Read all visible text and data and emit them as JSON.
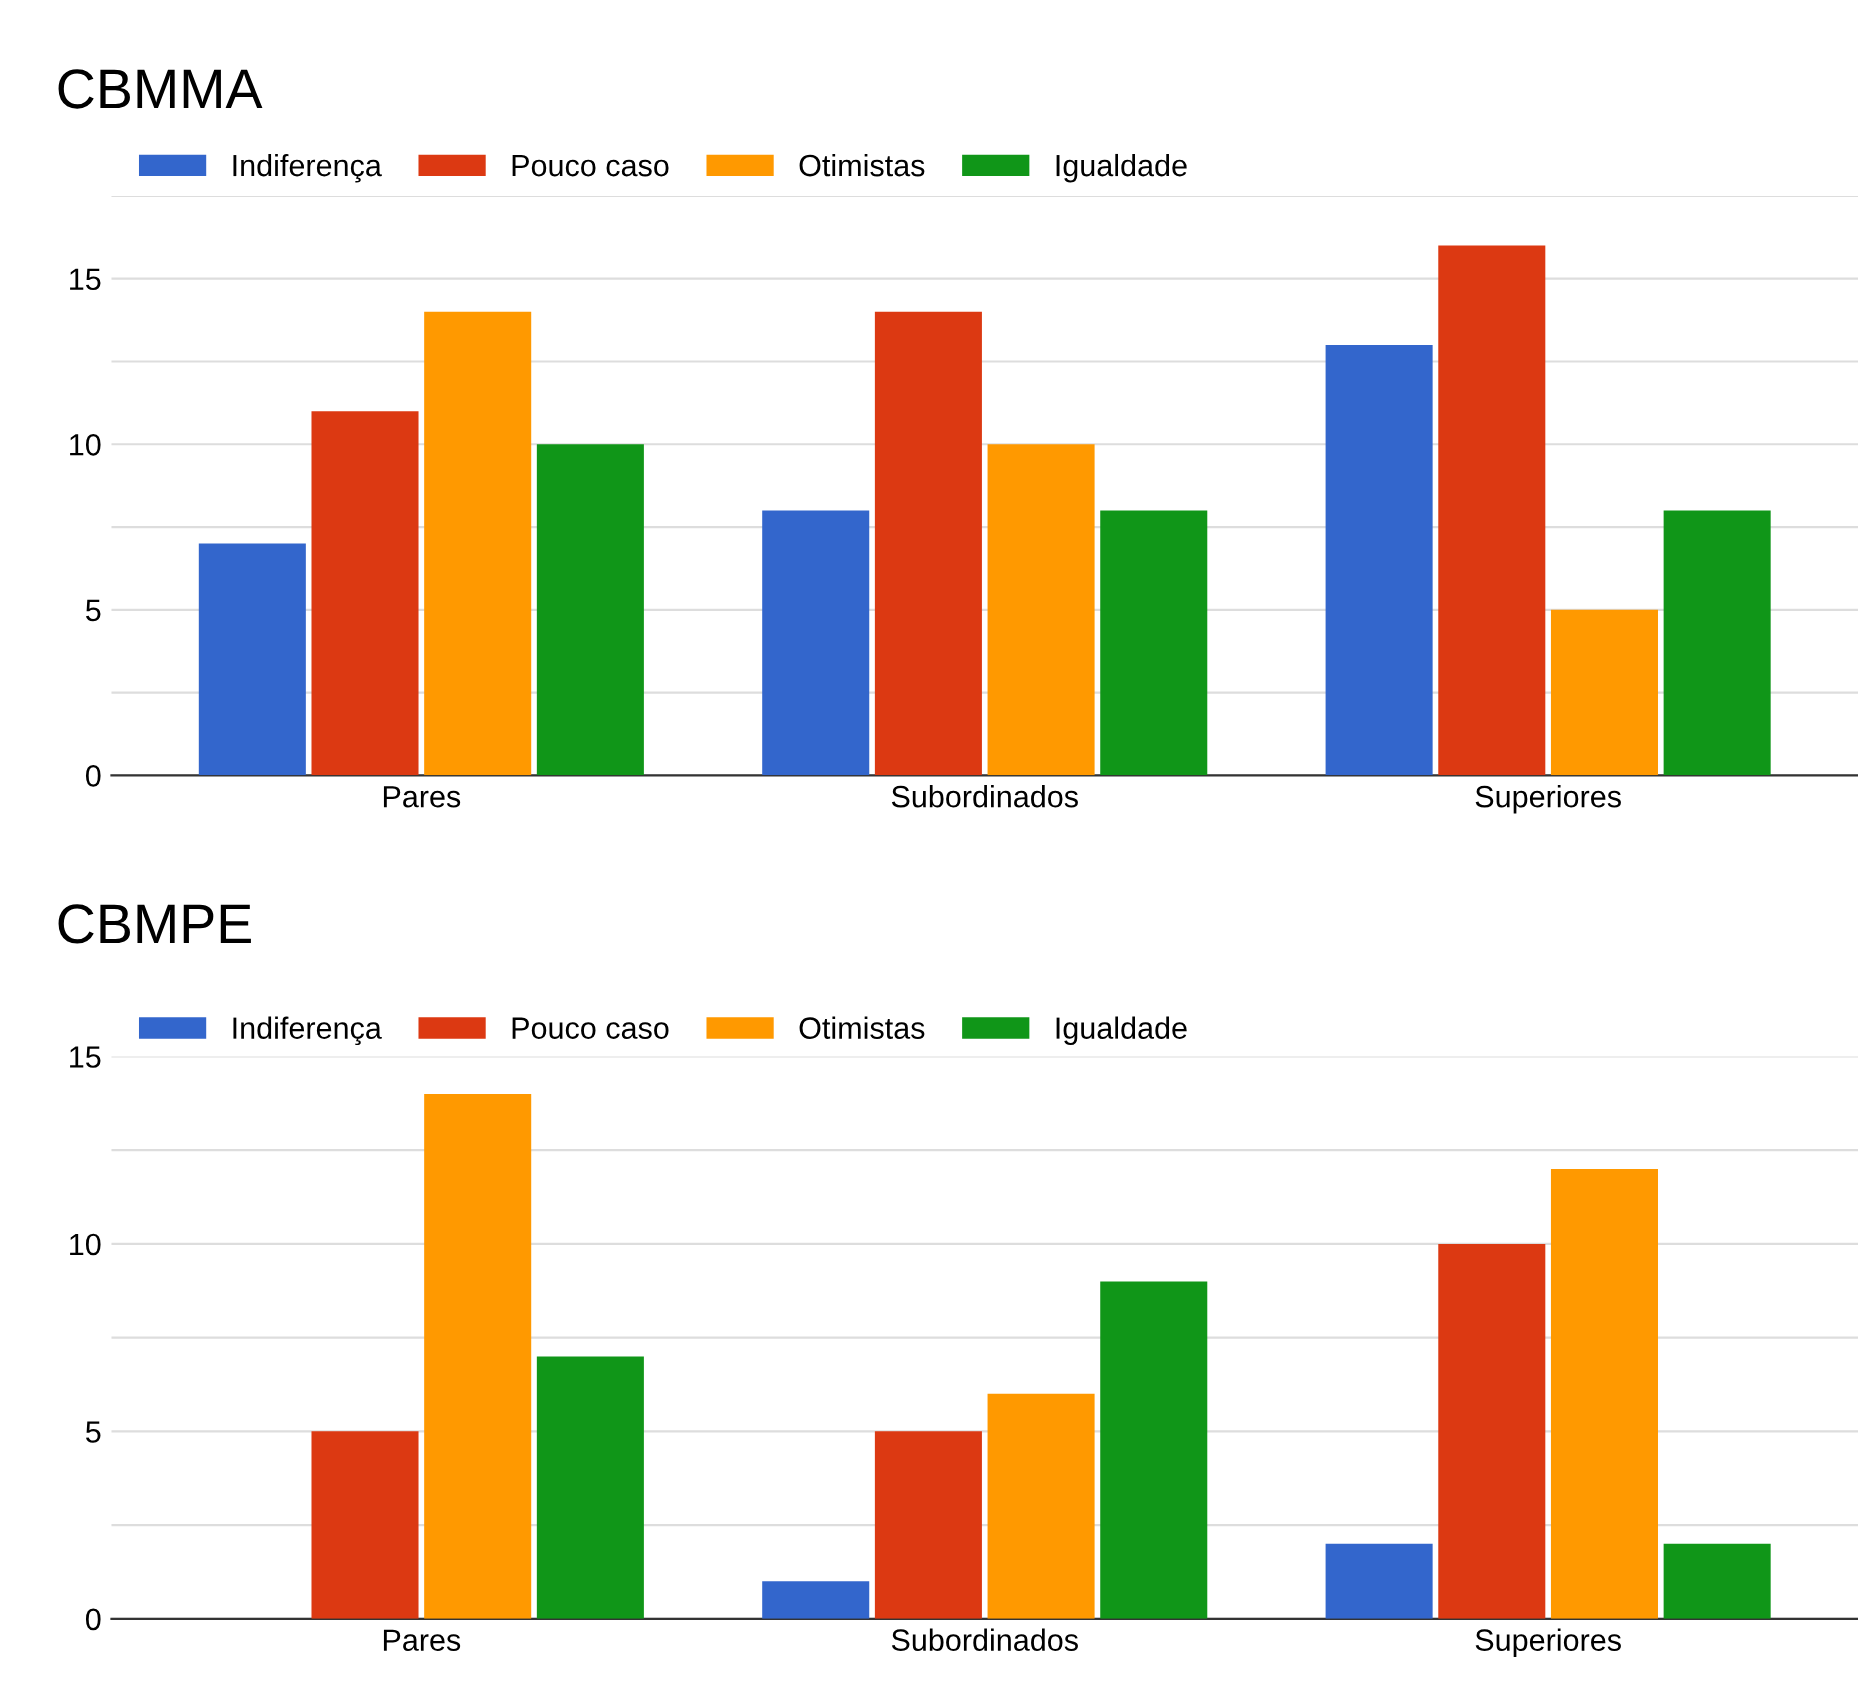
{
  "chart_data": [
    {
      "type": "bar",
      "title": "CBMMA",
      "categories": [
        "Pares",
        "Subordinados",
        "Superiores"
      ],
      "series": [
        {
          "name": "Indiferença",
          "color": "#3366cc",
          "values": [
            7,
            8,
            13
          ]
        },
        {
          "name": "Pouco caso",
          "color": "#dc3912",
          "values": [
            11,
            14,
            16
          ]
        },
        {
          "name": "Otimistas",
          "color": "#ff9900",
          "values": [
            14,
            10,
            5
          ]
        },
        {
          "name": "Igualdade",
          "color": "#109618",
          "values": [
            10,
            8,
            8
          ]
        }
      ],
      "ylim": [
        0,
        17.5
      ],
      "yticks": [
        0,
        {
          "value": 2.5,
          "label": null
        },
        5,
        {
          "value": 7.5,
          "label": null
        },
        10,
        {
          "value": 12.5,
          "label": null
        },
        15,
        {
          "value": 17.5,
          "label": null
        }
      ],
      "grid": "y",
      "legend": "top left"
    },
    {
      "type": "bar",
      "title": "CBMPE",
      "categories": [
        "Pares",
        "Subordinados",
        "Superiores"
      ],
      "series": [
        {
          "name": "Indiferença",
          "color": "#3366cc",
          "values": [
            0,
            1,
            2
          ]
        },
        {
          "name": "Pouco caso",
          "color": "#dc3912",
          "values": [
            5,
            5,
            10
          ]
        },
        {
          "name": "Otimistas",
          "color": "#ff9900",
          "values": [
            14,
            6,
            12
          ]
        },
        {
          "name": "Igualdade",
          "color": "#109618",
          "values": [
            7,
            9,
            2
          ]
        }
      ],
      "ylim": [
        0,
        15
      ],
      "yticks": [
        0,
        {
          "value": 2.5,
          "label": null
        },
        5,
        {
          "value": 7.5,
          "label": null
        },
        10,
        {
          "value": 12.5,
          "label": null
        },
        15
      ],
      "grid": "y",
      "legend": "top left"
    }
  ]
}
